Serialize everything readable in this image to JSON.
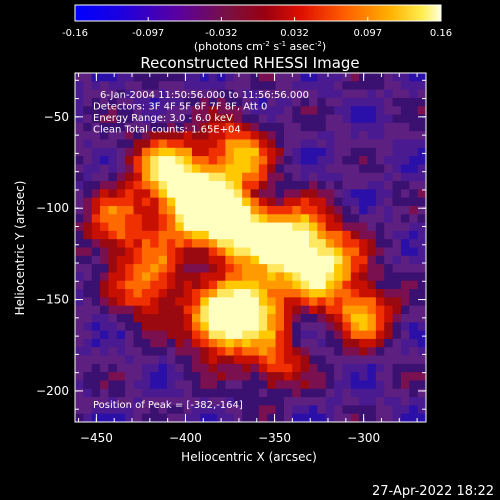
{
  "chart_data": {
    "type": "heatmap",
    "title": "Reconstructed RHESSI Image",
    "xlabel": "Heliocentric X (arcsec)",
    "ylabel": "Heliocentric Y (arcsec)",
    "xlim": [
      -462,
      -265
    ],
    "ylim": [
      -217,
      -26
    ],
    "x_ticks": [
      -450,
      -400,
      -350,
      -300
    ],
    "y_ticks": [
      -50,
      -100,
      -150,
      -200
    ],
    "colorbar": {
      "min": -0.16,
      "max": 0.16,
      "tick_labels": [
        "-0.16",
        "-0.097",
        "-0.032",
        "0.032",
        "0.097",
        "0.16"
      ],
      "unit_text": "(photons cm",
      "unit_sup1": "-2",
      "unit_mid": " s",
      "unit_sup2": "-1",
      "unit_mid2": " asec",
      "unit_sup3": "-2",
      "unit_end": ")"
    },
    "annotations": [
      "6-Jan-2004 11:50:56.000 to 11:56:56.000",
      "Detectors: 3F 4F 5F 6F 7F 8F, Att 0",
      "Energy Range: 3.0 - 6.0 keV",
      "Clean     Total counts: 1.65E+04"
    ],
    "peak_label": "Position of Peak = [-382,-164]",
    "peak": {
      "x": -382,
      "y": -164
    },
    "sources": [
      {
        "x": -392,
        "y": -100,
        "amp": 0.155,
        "sigma": 14
      },
      {
        "x": -372,
        "y": -110,
        "amp": 0.15,
        "sigma": 13
      },
      {
        "x": -382,
        "y": -164,
        "amp": 0.16,
        "sigma": 12
      },
      {
        "x": -363,
        "y": -152,
        "amp": 0.15,
        "sigma": 13
      },
      {
        "x": -323,
        "y": -130,
        "amp": 0.13,
        "sigma": 15
      },
      {
        "x": -343,
        "y": -118,
        "amp": 0.12,
        "sigma": 14
      },
      {
        "x": -410,
        "y": -80,
        "amp": 0.115,
        "sigma": 15
      },
      {
        "x": -420,
        "y": -140,
        "amp": 0.09,
        "sigma": 14
      },
      {
        "x": -370,
        "y": -70,
        "amp": 0.095,
        "sigma": 13
      },
      {
        "x": -300,
        "y": -158,
        "amp": 0.09,
        "sigma": 12
      },
      {
        "x": -350,
        "y": -185,
        "amp": 0.05,
        "sigma": 12
      },
      {
        "x": -440,
        "y": -110,
        "amp": 0.06,
        "sigma": 12
      }
    ],
    "colors": [
      "#0000ff",
      "#3a00b0",
      "#5a1a80",
      "#7a1a40",
      "#b01010",
      "#ff2a00",
      "#ff7a00",
      "#ffd000",
      "#ffffa0",
      "#ffffff"
    ]
  },
  "footer": {
    "timestamp": "27-Apr-2022 18:22"
  }
}
